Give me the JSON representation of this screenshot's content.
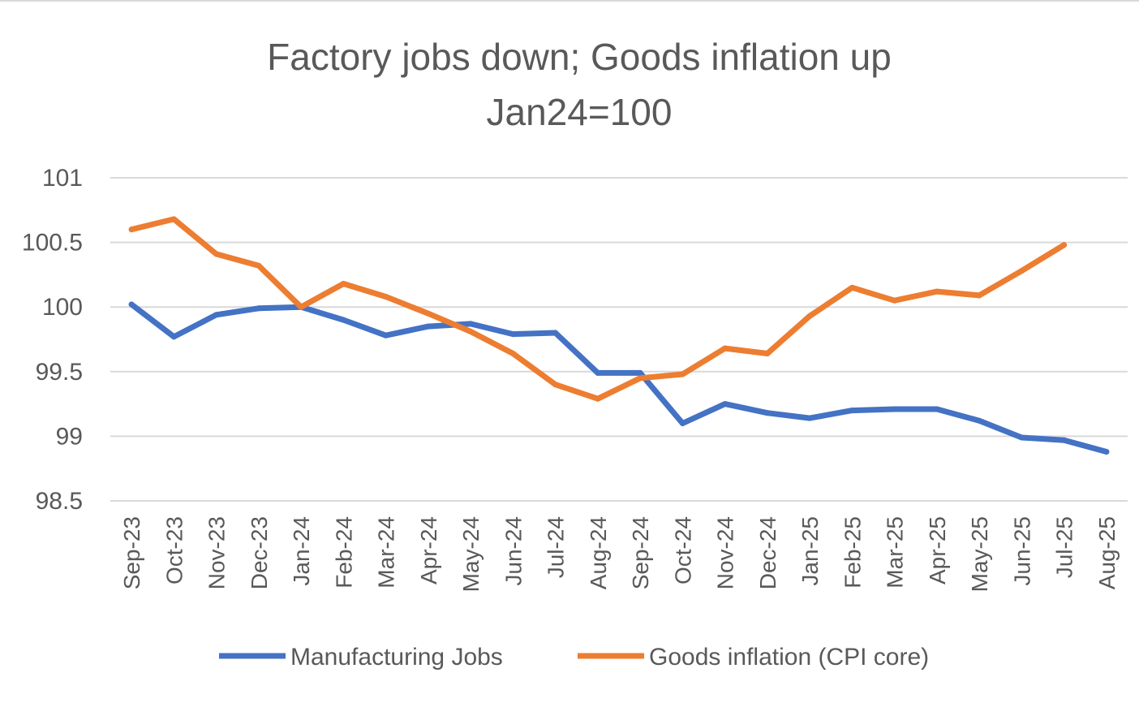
{
  "chart_data": {
    "type": "line",
    "title": "Factory jobs down; Goods inflation up",
    "subtitle": "Jan24=100",
    "xlabel": "",
    "ylabel": "",
    "ylim": [
      98.5,
      101
    ],
    "yticks": [
      "101",
      "100.5",
      "100",
      "99.5",
      "99",
      "98.5"
    ],
    "ytick_values": [
      101,
      100.5,
      100,
      99.5,
      99,
      98.5
    ],
    "grid": true,
    "legend_position": "bottom",
    "categories": [
      "Sep-23",
      "Oct-23",
      "Nov-23",
      "Dec-23",
      "Jan-24",
      "Feb-24",
      "Mar-24",
      "Apr-24",
      "May-24",
      "Jun-24",
      "Jul-24",
      "Aug-24",
      "Sep-24",
      "Oct-24",
      "Nov-24",
      "Dec-24",
      "Jan-25",
      "Feb-25",
      "Mar-25",
      "Apr-25",
      "May-25",
      "Jun-25",
      "Jul-25",
      "Aug-25"
    ],
    "series": [
      {
        "name": "Manufacturing Jobs",
        "color": "#4472c4",
        "values": [
          100.02,
          99.77,
          99.94,
          99.99,
          100.0,
          99.9,
          99.78,
          99.85,
          99.87,
          99.79,
          99.8,
          99.49,
          99.49,
          99.1,
          99.25,
          99.18,
          99.14,
          99.2,
          99.21,
          99.21,
          99.12,
          98.99,
          98.97,
          98.88
        ]
      },
      {
        "name": "Goods inflation (CPI core)",
        "color": "#ed7d31",
        "values": [
          100.6,
          100.68,
          100.41,
          100.32,
          100.0,
          100.18,
          100.08,
          99.95,
          99.81,
          99.64,
          99.4,
          99.29,
          99.45,
          99.48,
          99.68,
          99.64,
          99.93,
          100.15,
          100.05,
          100.12,
          100.09,
          100.28,
          100.48,
          null
        ]
      }
    ]
  }
}
